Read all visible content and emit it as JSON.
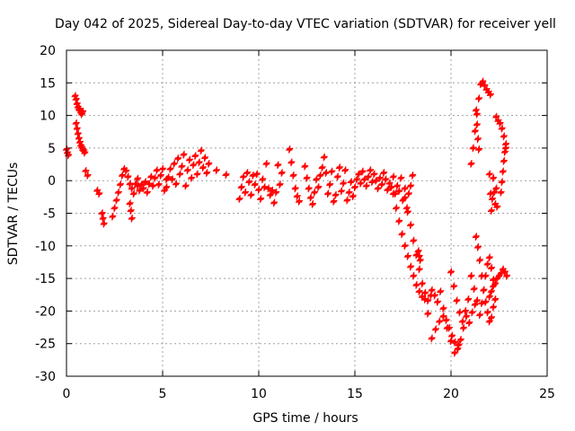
{
  "chart_data": {
    "type": "scatter",
    "title": "Day 042 of 2025, Sidereal Day-to-day VTEC variation (SDTVAR) for receiver yell",
    "xlabel": "GPS time / hours",
    "ylabel": "SDTVAR / TECUs",
    "xlim": [
      0,
      25
    ],
    "ylim": [
      -30,
      20
    ],
    "xticks": [
      0,
      5,
      10,
      15,
      20,
      25
    ],
    "yticks": [
      -30,
      -25,
      -20,
      -15,
      -10,
      -5,
      0,
      5,
      10,
      15,
      20
    ],
    "grid": true,
    "marker": "+",
    "color": "#ff0000",
    "series": [
      {
        "name": "SDTVAR",
        "segments": [
          {
            "x": [
              0.0,
              0.05,
              0.1
            ],
            "y": [
              4.8,
              4.3,
              3.9
            ]
          },
          {
            "x": [
              0.45,
              0.5,
              0.55,
              0.6,
              0.65,
              0.7,
              0.75,
              0.8,
              0.85
            ],
            "y": [
              13.0,
              12.5,
              11.8,
              11.3,
              11.0,
              10.8,
              10.5,
              10.2,
              10.6
            ]
          },
          {
            "x": [
              0.5,
              0.55,
              0.6,
              0.65,
              0.7,
              0.75,
              0.8,
              0.85,
              0.9,
              0.95
            ],
            "y": [
              8.8,
              8.0,
              7.2,
              6.5,
              5.9,
              5.4,
              5.1,
              4.8,
              4.6,
              4.3
            ]
          },
          {
            "x": [
              1.0,
              1.1
            ],
            "y": [
              1.5,
              0.8
            ]
          },
          {
            "x": [
              1.6,
              1.7
            ],
            "y": [
              -1.5,
              -2.0
            ]
          },
          {
            "x": [
              1.85,
              1.9,
              1.95
            ],
            "y": [
              -5.0,
              -5.8,
              -6.6
            ]
          },
          {
            "x": [
              2.4,
              2.5,
              2.6,
              2.7,
              2.8,
              2.9,
              3.0,
              3.1,
              3.2,
              3.3,
              3.4,
              3.5,
              3.6,
              3.7
            ],
            "y": [
              -5.5,
              -4.2,
              -3.0,
              -1.8,
              -0.6,
              0.8,
              1.8,
              1.5,
              0.6,
              -0.5,
              -1.2,
              -2.0,
              -0.5,
              0.3
            ]
          },
          {
            "x": [
              3.3,
              3.35,
              3.4
            ],
            "y": [
              -3.5,
              -4.6,
              -5.8
            ]
          },
          {
            "x": [
              3.7,
              3.8,
              3.9,
              4.0,
              4.1,
              4.2,
              4.3,
              4.4,
              4.5,
              4.6,
              4.7,
              4.8,
              4.9,
              5.0,
              5.1,
              5.2
            ],
            "y": [
              -0.8,
              -1.5,
              -0.6,
              -1.2,
              -0.2,
              -1.8,
              -0.5,
              0.6,
              -0.8,
              0.4,
              1.6,
              -0.6,
              0.8,
              1.8,
              -1.5,
              0.2
            ]
          },
          {
            "x": [
              5.2,
              5.3,
              5.4,
              5.5,
              5.6,
              5.7,
              5.8,
              5.9,
              6.0,
              6.1,
              6.2,
              6.3,
              6.4,
              6.5,
              6.6,
              6.7,
              6.8,
              6.9,
              7.0,
              7.1,
              7.2,
              7.3,
              7.4
            ],
            "y": [
              -1.0,
              0.5,
              1.8,
              0.2,
              2.6,
              -0.5,
              3.4,
              1.0,
              2.2,
              4.0,
              -0.8,
              1.6,
              3.2,
              0.4,
              2.4,
              3.8,
              1.0,
              2.8,
              4.6,
              2.0,
              3.5,
              1.2,
              2.6
            ]
          },
          {
            "x": [
              7.8,
              8.3
            ],
            "y": [
              1.6,
              0.9
            ]
          },
          {
            "x": [
              9.0,
              9.1,
              9.2,
              9.3,
              9.4,
              9.5,
              9.6,
              9.7,
              9.8,
              9.9,
              10.0,
              10.1,
              10.2,
              10.3,
              10.4
            ],
            "y": [
              -2.8,
              -1.0,
              0.6,
              -1.8,
              1.2,
              -0.2,
              -2.2,
              0.8,
              -0.6,
              1.0,
              -1.4,
              -2.8,
              0.2,
              -1.0,
              2.6
            ]
          },
          {
            "x": [
              10.5,
              10.6,
              10.7,
              10.8,
              10.9,
              11.0,
              11.1,
              11.2
            ],
            "y": [
              -1.2,
              -2.2,
              -1.5,
              -3.4,
              -1.8,
              2.4,
              -0.6,
              1.2
            ]
          },
          {
            "x": [
              11.6,
              11.7,
              11.8,
              11.9,
              12.0,
              12.1
            ],
            "y": [
              4.8,
              2.8,
              0.8,
              -1.2,
              -2.4,
              -3.2
            ]
          },
          {
            "x": [
              12.4,
              12.5,
              12.6,
              12.7,
              12.8,
              12.9,
              13.0,
              13.1,
              13.2,
              13.3,
              13.4,
              13.5,
              13.6,
              13.7,
              13.8,
              13.9,
              14.0,
              14.1,
              14.2,
              14.3,
              14.4,
              14.5,
              14.6,
              14.7,
              14.8,
              14.9
            ],
            "y": [
              2.2,
              0.4,
              -1.2,
              -2.6,
              -3.6,
              -1.8,
              0.2,
              -1.0,
              0.8,
              2.0,
              3.6,
              1.2,
              -2.0,
              -0.6,
              1.4,
              -3.2,
              -2.2,
              0.6,
              2.0,
              -1.6,
              -0.4,
              1.6,
              -3.0,
              -1.8,
              -0.2,
              -2.4
            ]
          },
          {
            "x": [
              15.0,
              15.1,
              15.2,
              15.3,
              15.4,
              15.5,
              15.6,
              15.7,
              15.8,
              15.9,
              16.0,
              16.1,
              16.2,
              16.3,
              16.4,
              16.5,
              16.6,
              16.7,
              16.8,
              16.9,
              17.0,
              17.1,
              17.2,
              17.3,
              17.4,
              17.5,
              17.6,
              17.7,
              17.8,
              17.9,
              18.0
            ],
            "y": [
              -1.0,
              0.2,
              1.0,
              -0.4,
              1.4,
              0.2,
              -0.8,
              0.6,
              1.6,
              -0.2,
              1.0,
              0.0,
              -1.2,
              0.4,
              -0.6,
              1.2,
              0.2,
              -1.4,
              -0.4,
              -1.0,
              0.6,
              -2.0,
              -0.8,
              -1.6,
              0.4,
              -3.0,
              -1.2,
              -4.2,
              -2.0,
              -0.8,
              0.8
            ]
          },
          {
            "x": [
              17.0,
              17.15,
              17.3,
              17.45,
              17.6,
              17.75,
              17.9,
              18.05,
              18.2,
              18.35,
              18.5,
              18.65,
              18.8,
              18.95
            ],
            "y": [
              -2.0,
              -4.2,
              -6.2,
              -8.2,
              -10.0,
              -11.6,
              -13.2,
              -14.6,
              -16.0,
              -17.0,
              -17.8,
              -17.2,
              -18.4,
              -17.6
            ]
          },
          {
            "x": [
              17.6,
              17.75,
              17.9,
              18.05,
              18.2,
              18.35,
              18.5,
              18.65,
              18.8
            ],
            "y": [
              -2.6,
              -4.8,
              -6.8,
              -9.2,
              -11.4,
              -13.6,
              -15.8,
              -18.2,
              -20.4
            ]
          },
          {
            "x": [
              18.3,
              18.35,
              18.4
            ],
            "y": [
              -10.8,
              -11.6,
              -12.2
            ]
          },
          {
            "x": [
              19.0,
              19.15,
              19.3,
              19.45,
              19.6,
              19.75,
              19.9,
              20.05,
              20.2,
              20.35,
              20.5,
              20.65,
              20.8,
              20.95,
              21.1,
              21.25
            ],
            "y": [
              -16.8,
              -17.6,
              -18.6,
              -17.0,
              -19.6,
              -21.4,
              -22.6,
              -23.8,
              -24.8,
              -25.8,
              -24.4,
              -22.6,
              -20.8,
              -21.8,
              -20.2,
              -19.0
            ]
          },
          {
            "x": [
              19.0,
              19.2,
              19.4,
              19.6,
              19.8,
              20.0,
              20.2,
              20.4
            ],
            "y": [
              -24.2,
              -22.8,
              -21.6,
              -20.8,
              -22.6,
              -24.6,
              -26.4,
              -25.2
            ]
          },
          {
            "x": [
              20.0,
              20.15,
              20.3,
              20.45,
              20.6,
              20.75,
              20.9,
              21.05,
              21.2,
              21.35
            ],
            "y": [
              -14.0,
              -16.2,
              -18.4,
              -20.2,
              -21.6,
              -20.0,
              -18.2,
              -14.6,
              -16.6,
              -18.4
            ]
          },
          {
            "x": [
              21.3,
              21.4,
              21.5,
              21.6,
              21.7,
              21.8,
              21.9,
              22.0,
              22.1,
              22.2,
              22.3
            ],
            "y": [
              -8.6,
              -10.2,
              -12.2,
              -14.6,
              -16.8,
              -18.6,
              -20.2,
              -21.6,
              -21.0,
              -19.4,
              -18.2
            ]
          },
          {
            "x": [
              21.5,
              21.6,
              21.7,
              21.8,
              21.9,
              22.0,
              22.1,
              22.2
            ],
            "y": [
              -20.6,
              -18.8,
              -16.8,
              -14.6,
              -12.8,
              -11.8,
              -13.4,
              -15.2
            ]
          },
          {
            "x": [
              22.0,
              22.1,
              22.2,
              22.3,
              22.4,
              22.5,
              22.6,
              22.7,
              22.8,
              22.9
            ],
            "y": [
              -17.8,
              -17.0,
              -16.2,
              -15.8,
              -15.0,
              -14.6,
              -14.2,
              -13.6,
              -14.0,
              -14.6
            ]
          },
          {
            "x": [
              21.05,
              21.15,
              21.25,
              21.35,
              21.45,
              21.55,
              21.65,
              21.75,
              21.85,
              21.95,
              22.05
            ],
            "y": [
              2.6,
              5.0,
              7.6,
              10.2,
              12.6,
              14.8,
              15.2,
              14.6,
              14.0,
              13.6,
              13.2
            ]
          },
          {
            "x": [
              21.3,
              21.35,
              21.4,
              21.45
            ],
            "y": [
              10.8,
              8.6,
              6.4,
              4.8
            ]
          },
          {
            "x": [
              22.0,
              22.05,
              22.1,
              22.15,
              22.2,
              22.25,
              22.3,
              22.35,
              22.4
            ],
            "y": [
              1.0,
              -2.0,
              -4.6,
              -2.8,
              0.4,
              -1.8,
              -3.6,
              -1.2,
              -4.0
            ]
          },
          {
            "x": [
              22.35,
              22.45,
              22.55,
              22.65,
              22.75,
              22.85
            ],
            "y": [
              9.8,
              9.2,
              8.8,
              8.0,
              6.8,
              5.0
            ]
          },
          {
            "x": [
              22.6,
              22.65,
              22.7,
              22.75,
              22.8,
              22.85
            ],
            "y": [
              -1.8,
              -0.2,
              1.4,
              3.0,
              4.4,
              5.6
            ]
          }
        ]
      }
    ]
  }
}
